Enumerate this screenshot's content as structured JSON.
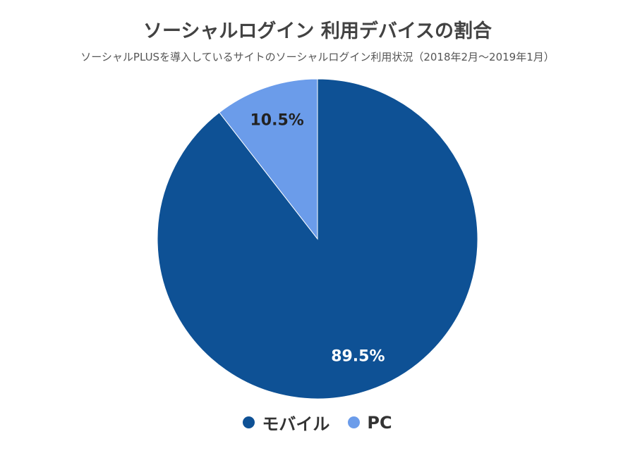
{
  "chart_data": {
    "type": "pie",
    "title": "ソーシャルログイン 利用デバイスの割合",
    "subtitle": "ソーシャルPLUSを導入しているサイトのソーシャルログイン利用状況（2018年2月〜2019年1月）",
    "slices": [
      {
        "label": "モバイル",
        "value": 89.5,
        "display": "89.5%",
        "color": "#0e5195",
        "label_color": "#ffffff"
      },
      {
        "label": "PC",
        "value": 10.5,
        "display": "10.5%",
        "color": "#6b9cea",
        "label_color": "#222222"
      }
    ],
    "legend": {
      "position": "bottom",
      "items": [
        "モバイル",
        "PC"
      ]
    }
  }
}
